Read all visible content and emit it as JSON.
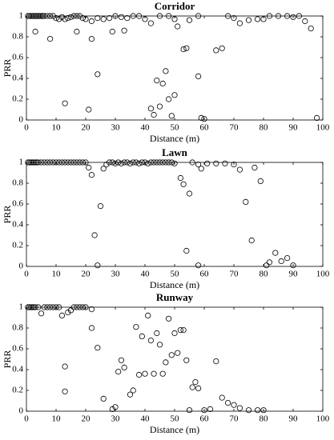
{
  "chart_data": [
    {
      "type": "scatter",
      "title": "Corridor",
      "xlabel": "Distance (m)",
      "ylabel": "PRR",
      "x": [
        0.5,
        1,
        1.5,
        2,
        2.5,
        3,
        3.5,
        4,
        4.5,
        5,
        5.5,
        6,
        7,
        8,
        9,
        10,
        11,
        12,
        13,
        14,
        15,
        16,
        17,
        18,
        19,
        20,
        22,
        24,
        26,
        28,
        30,
        32,
        34,
        36,
        38,
        40,
        42,
        45,
        48,
        50,
        55,
        58,
        68,
        70,
        72,
        75,
        78,
        80,
        82,
        85,
        88,
        90,
        92,
        94,
        96,
        3,
        8,
        13,
        17,
        21,
        22,
        24,
        29,
        33,
        42,
        43,
        44,
        45,
        46,
        47,
        48,
        49,
        50,
        51,
        53,
        54,
        58,
        59,
        60,
        64,
        66,
        98
      ],
      "values": [
        1,
        1,
        1,
        1,
        1,
        1,
        1,
        1,
        1,
        1,
        1,
        1,
        1,
        1,
        1,
        0.98,
        0.97,
        0.99,
        0.97,
        0.98,
        0.99,
        1,
        1,
        1,
        0.98,
        0.97,
        0.95,
        0.98,
        0.97,
        0.98,
        1,
        0.99,
        0.98,
        1,
        1,
        0.97,
        0.93,
        1,
        1,
        0.97,
        0.96,
        1,
        1,
        0.98,
        0.93,
        0.96,
        0.97,
        0.97,
        1,
        1,
        1,
        0.99,
        1,
        0.95,
        0.88,
        0.85,
        0.78,
        0.16,
        0.85,
        0.1,
        0.78,
        0.44,
        0.85,
        0.86,
        0.11,
        0.05,
        0.38,
        0.13,
        0.35,
        0.47,
        0.2,
        0.04,
        0.24,
        0.9,
        0.68,
        0.69,
        0.42,
        0.02,
        0.01,
        0.67,
        0.69,
        0.02
      ],
      "xlim": [
        0,
        100
      ],
      "ylim": [
        0,
        1
      ],
      "xticks": [
        0,
        10,
        20,
        30,
        40,
        50,
        60,
        70,
        80,
        90,
        100
      ],
      "yticks": [
        0,
        0.2,
        0.4,
        0.6,
        0.8,
        1
      ],
      "color": "#000000"
    },
    {
      "type": "scatter",
      "title": "Lawn",
      "xlabel": "Distance (m)",
      "ylabel": "PRR",
      "x": [
        0.5,
        1,
        1.5,
        2,
        2.5,
        3,
        3.5,
        4,
        5,
        6,
        7,
        8,
        9,
        10,
        11,
        12,
        13,
        14,
        15,
        16,
        17,
        18,
        19,
        20,
        21,
        22,
        23,
        24,
        25,
        26,
        27,
        28,
        29,
        30,
        31,
        32,
        33,
        34,
        35,
        36,
        37,
        38,
        39,
        40,
        41,
        42,
        43,
        44,
        45,
        46,
        47,
        48,
        49,
        50,
        52,
        53,
        54,
        55,
        56,
        58,
        58,
        59,
        61,
        64,
        67,
        70,
        72,
        74,
        76,
        77,
        79,
        81,
        82,
        84,
        86,
        88,
        90
      ],
      "values": [
        1,
        1,
        1,
        1,
        1,
        1,
        1,
        1,
        1,
        1,
        1,
        1,
        1,
        1,
        1,
        1,
        1,
        1,
        1,
        1,
        1,
        1,
        1,
        1,
        0.95,
        0.88,
        0.3,
        0.01,
        0.58,
        0.94,
        0.98,
        1,
        1,
        0.99,
        1,
        0.99,
        1,
        1,
        0.99,
        1,
        1,
        0.99,
        1,
        1,
        0.99,
        1,
        1,
        1,
        1,
        1,
        1,
        1,
        1,
        0.99,
        0.85,
        0.79,
        0.15,
        0.7,
        1,
        0.98,
        0.01,
        0.94,
        0.99,
        0.99,
        0.99,
        0.98,
        0.93,
        0.62,
        0.25,
        0.95,
        0.82,
        0.01,
        0.04,
        0.13,
        0.05,
        0.08,
        0.01
      ],
      "xlim": [
        0,
        100
      ],
      "ylim": [
        0,
        1
      ],
      "xticks": [
        0,
        10,
        20,
        30,
        40,
        50,
        60,
        70,
        80,
        90,
        100
      ],
      "yticks": [
        0,
        0.2,
        0.4,
        0.6,
        0.8,
        1
      ],
      "color": "#000000"
    },
    {
      "type": "scatter",
      "title": "Runway",
      "xlabel": "Distance (m)",
      "ylabel": "PRR",
      "x": [
        0.5,
        1,
        1.5,
        2,
        2.5,
        3,
        4,
        5,
        6,
        7,
        8,
        9,
        10,
        11,
        12,
        13,
        13,
        14,
        15,
        16,
        17,
        18,
        19,
        20,
        22,
        22,
        24,
        26,
        29,
        30,
        31,
        32,
        33,
        35,
        36,
        37,
        38,
        39,
        40,
        41,
        42,
        43,
        44,
        45,
        46,
        47,
        48,
        49,
        50,
        51,
        52,
        53,
        54,
        55,
        56,
        57,
        58,
        60,
        62,
        64,
        66,
        68,
        70,
        72,
        75,
        78,
        80
      ],
      "values": [
        1,
        1,
        1,
        1,
        1,
        1,
        1,
        0.94,
        1,
        1,
        1,
        1,
        1,
        1,
        0.92,
        0.43,
        0.19,
        0.95,
        0.97,
        1,
        1,
        1,
        1,
        1,
        0.98,
        0.8,
        0.61,
        0.12,
        0.02,
        0.04,
        0.38,
        0.49,
        0.42,
        0.16,
        0.2,
        0.81,
        0.35,
        0.72,
        0.36,
        0.92,
        0.68,
        0.36,
        0.75,
        0.64,
        0.36,
        0.47,
        0.89,
        0.54,
        0.75,
        0.56,
        0.78,
        0.78,
        0.49,
        0.01,
        0.23,
        0.28,
        0.22,
        0.01,
        0.02,
        0.48,
        0.13,
        0.08,
        0.06,
        0.03,
        0.01,
        0.01,
        0.01
      ],
      "xlim": [
        0,
        100
      ],
      "ylim": [
        0,
        1
      ],
      "xticks": [
        0,
        10,
        20,
        30,
        40,
        50,
        60,
        70,
        80,
        90,
        100
      ],
      "yticks": [
        0,
        0.2,
        0.4,
        0.6,
        0.8,
        1
      ],
      "color": "#000000"
    }
  ]
}
